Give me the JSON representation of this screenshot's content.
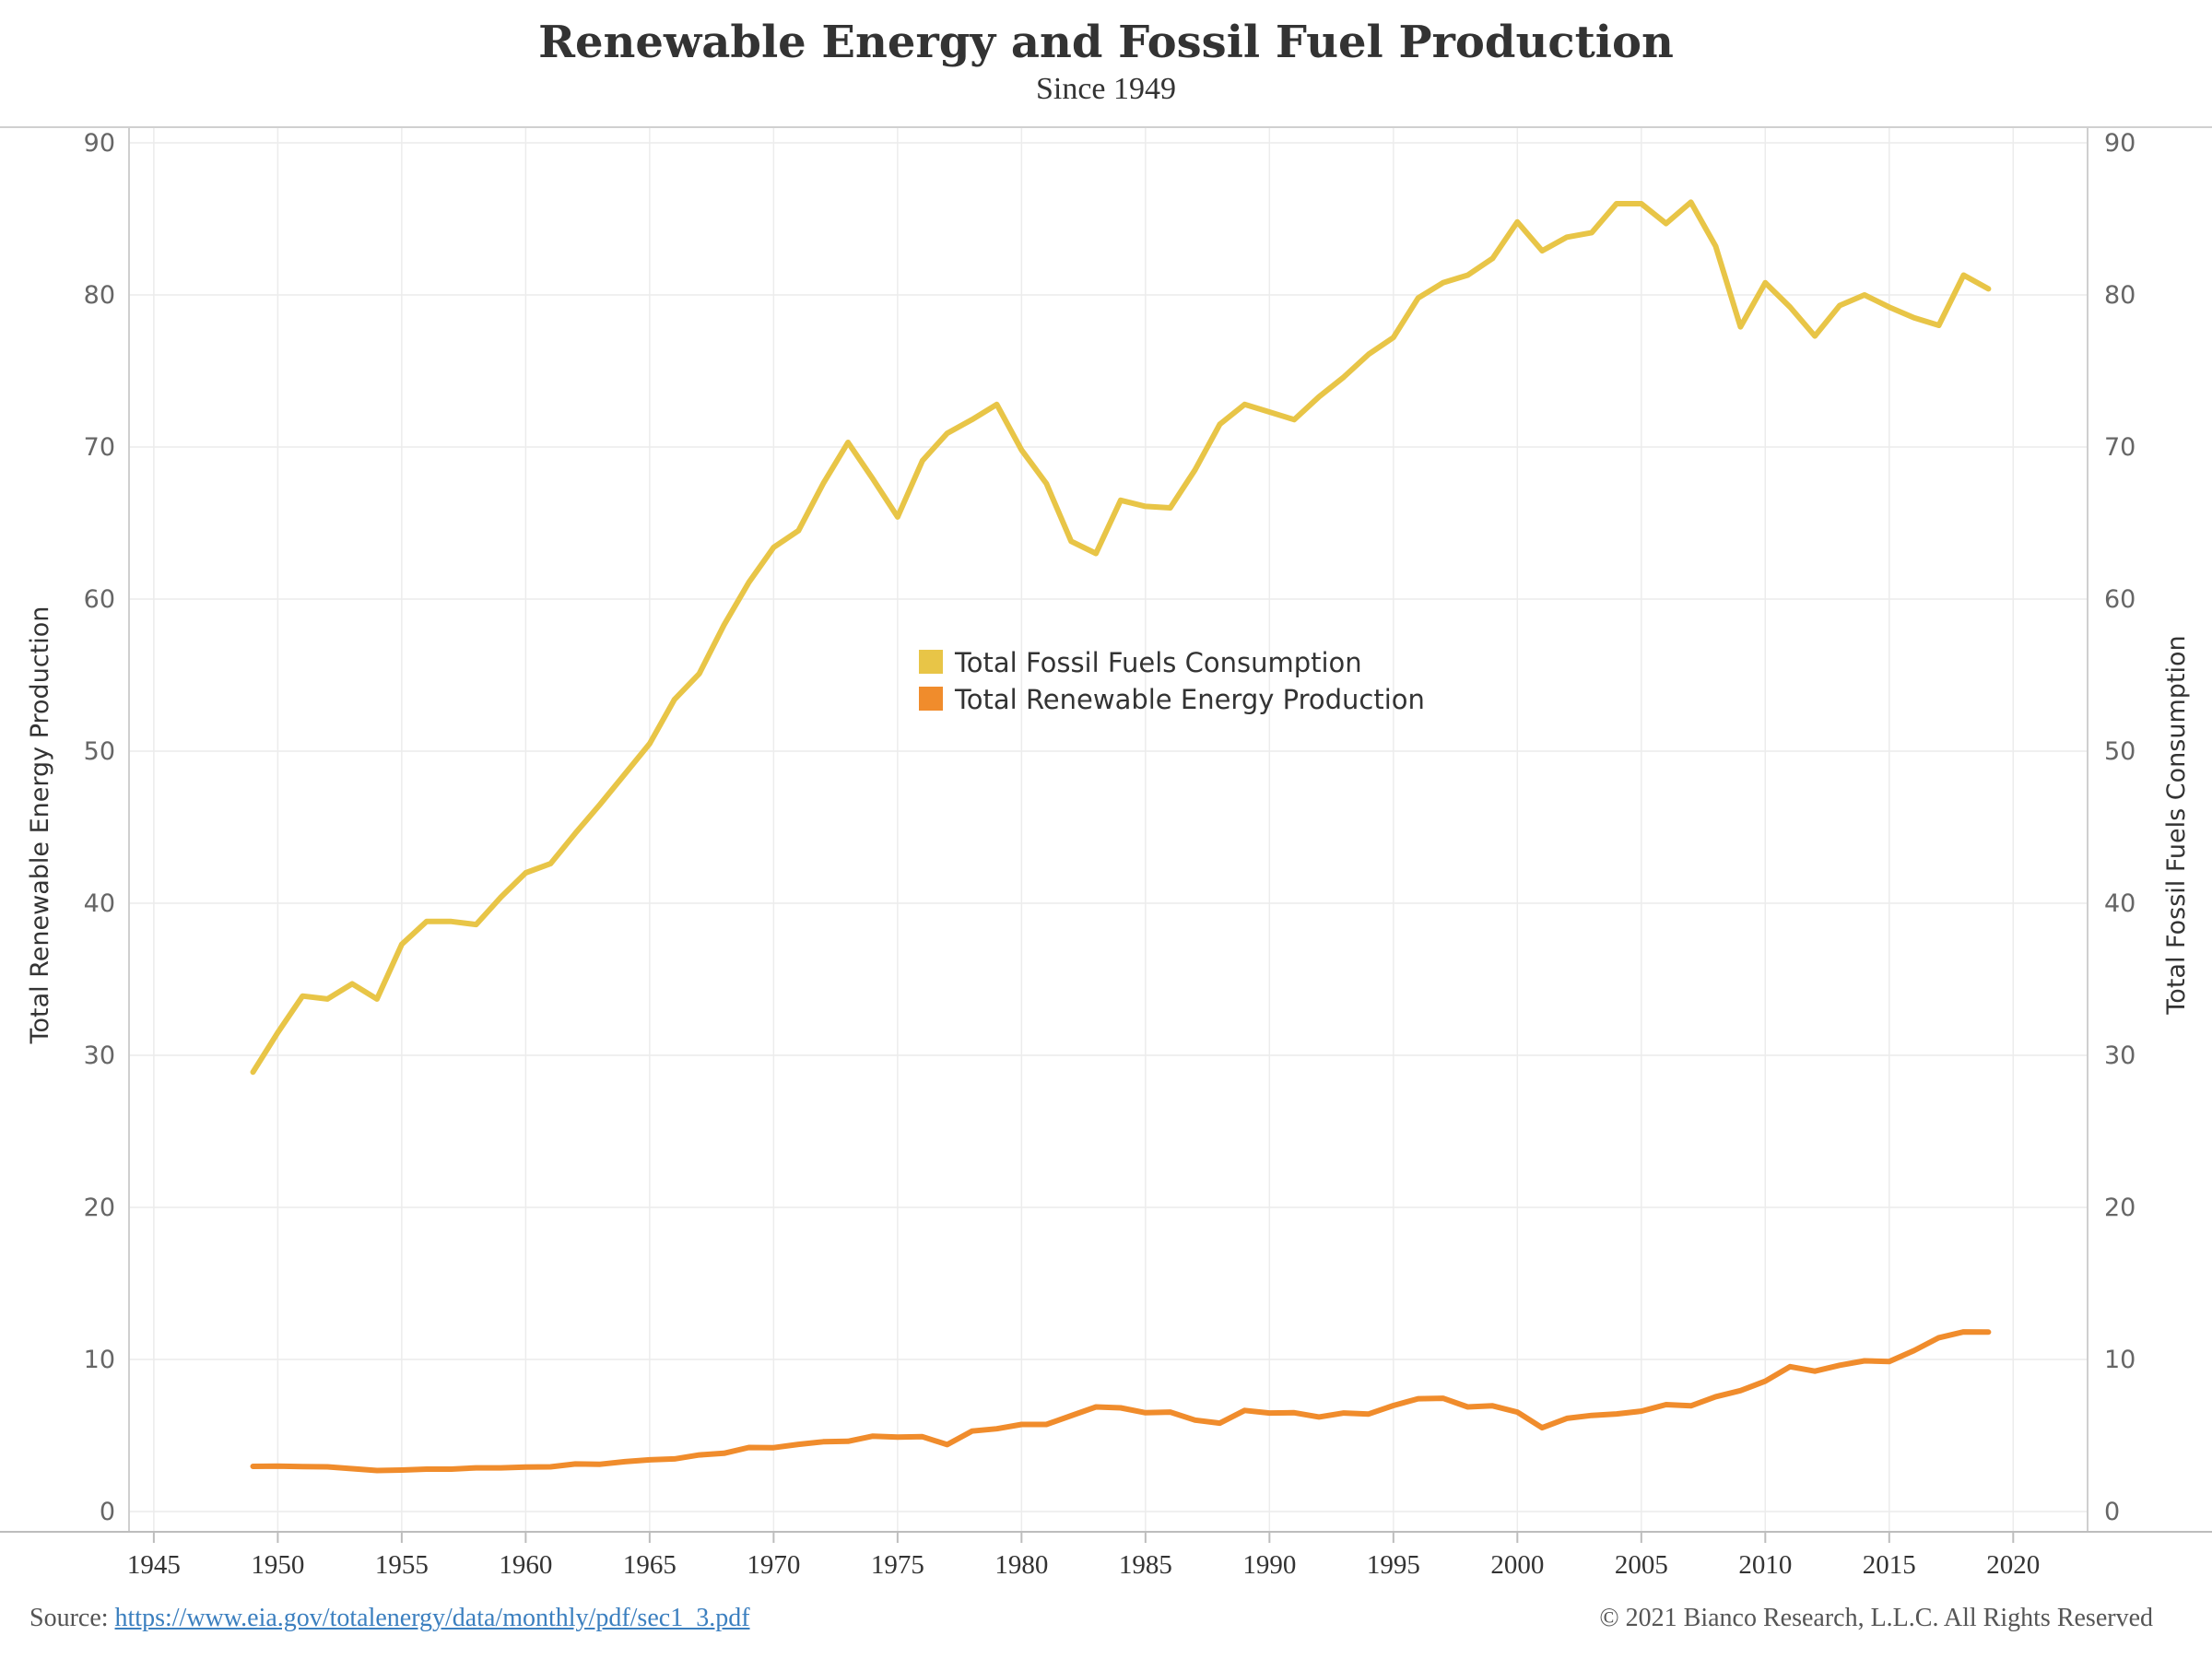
{
  "chart_data": {
    "type": "line",
    "title": "Renewable Energy and Fossil Fuel Production",
    "subtitle": "Since 1949",
    "ylabel_left": "Total Renewable Energy Production",
    "ylabel_right": "Total Fossil Fuels Consumption",
    "xlim": [
      1944,
      2023
    ],
    "ylim": [
      0,
      90
    ],
    "x_ticks": [
      1945,
      1950,
      1955,
      1960,
      1965,
      1970,
      1975,
      1980,
      1985,
      1990,
      1995,
      2000,
      2005,
      2010,
      2015,
      2020
    ],
    "y_ticks": [
      0,
      10,
      20,
      30,
      40,
      50,
      60,
      70,
      80,
      90
    ],
    "grid": true,
    "legend_position": "center",
    "x": [
      1949,
      1950,
      1951,
      1952,
      1953,
      1954,
      1955,
      1956,
      1957,
      1958,
      1959,
      1960,
      1961,
      1962,
      1963,
      1964,
      1965,
      1966,
      1967,
      1968,
      1969,
      1970,
      1971,
      1972,
      1973,
      1974,
      1975,
      1976,
      1977,
      1978,
      1979,
      1980,
      1981,
      1982,
      1983,
      1984,
      1985,
      1986,
      1987,
      1988,
      1989,
      1990,
      1991,
      1992,
      1993,
      1994,
      1995,
      1996,
      1997,
      1998,
      1999,
      2000,
      2001,
      2002,
      2003,
      2004,
      2005,
      2006,
      2007,
      2008,
      2009,
      2010,
      2011,
      2012,
      2013,
      2014,
      2015,
      2016,
      2017,
      2018,
      2019
    ],
    "series": [
      {
        "name": "Total Fossil Fuels Consumption",
        "color": "#e8c547",
        "axis": "right",
        "values": [
          28.9,
          31.5,
          33.9,
          33.7,
          34.7,
          33.7,
          37.3,
          38.8,
          38.8,
          38.6,
          40.4,
          42.0,
          42.6,
          44.6,
          46.5,
          48.5,
          50.5,
          53.4,
          55.1,
          58.3,
          61.1,
          63.4,
          64.5,
          67.6,
          70.3,
          67.9,
          65.4,
          69.1,
          70.9,
          71.8,
          72.8,
          69.8,
          67.6,
          63.8,
          63.0,
          66.5,
          66.1,
          66.0,
          68.5,
          71.5,
          72.8,
          72.3,
          71.8,
          73.3,
          74.6,
          76.1,
          77.2,
          79.8,
          80.8,
          81.3,
          82.4,
          84.8,
          82.9,
          83.8,
          84.1,
          86.0,
          86.0,
          84.7,
          86.1,
          83.2,
          77.9,
          80.8,
          79.2,
          77.3,
          79.3,
          80.0,
          79.2,
          78.5,
          78.0,
          81.3,
          80.4
        ]
      },
      {
        "name": "Total Renewable Energy Production",
        "color": "#f08c2c",
        "axis": "left",
        "values": [
          2.97,
          2.98,
          2.96,
          2.94,
          2.82,
          2.7,
          2.73,
          2.79,
          2.79,
          2.87,
          2.87,
          2.93,
          2.94,
          3.13,
          3.11,
          3.28,
          3.4,
          3.46,
          3.72,
          3.83,
          4.21,
          4.2,
          4.42,
          4.59,
          4.62,
          4.96,
          4.9,
          4.92,
          4.4,
          5.29,
          5.44,
          5.73,
          5.73,
          6.3,
          6.88,
          6.82,
          6.5,
          6.54,
          6.01,
          5.81,
          6.65,
          6.48,
          6.5,
          6.22,
          6.48,
          6.41,
          6.97,
          7.42,
          7.45,
          6.88,
          6.95,
          6.54,
          5.51,
          6.13,
          6.32,
          6.42,
          6.6,
          7.03,
          6.95,
          7.55,
          7.95,
          8.57,
          9.53,
          9.23,
          9.62,
          9.91,
          9.86,
          10.58,
          11.43,
          11.81,
          11.8
        ]
      }
    ]
  },
  "legend": {
    "items": [
      {
        "label": "Total Fossil Fuels Consumption",
        "color": "#e8c547"
      },
      {
        "label": "Total Renewable Energy Production",
        "color": "#f08c2c"
      }
    ]
  },
  "footer": {
    "source_label": "Source: ",
    "source_link": "https://www.eia.gov/totalenergy/data/monthly/pdf/sec1_3.pdf",
    "copyright": "© 2021 Bianco Research, L.L.C. All Rights Reserved"
  }
}
